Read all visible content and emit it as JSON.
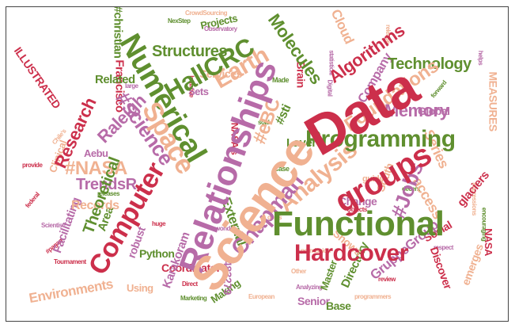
{
  "words": {
    "data": "Data",
    "science": "Science",
    "functional": "Functional",
    "relationships": "Relationships",
    "numerical": "Numerical",
    "computer": "Computer",
    "space": "Space",
    "groups": "groups",
    "programming": "Programming",
    "hardcover": "Hardcover",
    "chapman": "Chapman",
    "hallcrc": "HallCRC",
    "earth": "Earth",
    "analysis": "Analysis",
    "science_tag": "#science",
    "molecules": "Molecules",
    "algorithms": "Algorithms",
    "technology": "Technology",
    "structures": "Structures",
    "research": "Research",
    "raleigh": "Raleigh",
    "memory": "Memory",
    "foundations": "Foundations",
    "nasa_tag": "#NASA",
    "trendsr": "TrendsR",
    "theoretical": "Theoretical",
    "ebc_tag": "#eBC",
    "sti_tag": "#sti",
    "jobs_tag": "#Jobs",
    "christian_tag": "#christian",
    "projects": "Projects",
    "company": "Company",
    "cloud": "Cloud",
    "global": "Global",
    "measures": "MEASURES",
    "layer": "Layer",
    "series": "Series",
    "access": "access",
    "glaciers": "glaciers",
    "south": "South",
    "external": "External",
    "coordinator": "Coordinator",
    "records": "Records",
    "robust": "robust",
    "python": "Python",
    "karakoram": "Karakoram",
    "environments": "Environments",
    "using": "Using",
    "facilitating": "Facilitating",
    "gruppegroup": "GruppeGroup",
    "directory": "Directory",
    "discover": "Discover",
    "master": "Master",
    "senior": "Senior",
    "base": "Base",
    "social": "Social",
    "change": "Change",
    "shows": "Shows",
    "emerges": "emerges",
    "making": "Making",
    "id": "483279",
    "illustrated": "ILLUSTRATED",
    "francisco": "Francisco",
    "related": "Related",
    "sets": "Sets",
    "services": "Services",
    "brain": "Brain",
    "clinical": "Clinical",
    "aebu": "Aebu",
    "area": "Area",
    "nasa": "NASA",
    "nasas": "NASA's",
    "pagan": "#pagan",
    "scientist": "Scientist",
    "european": "European",
    "marketing": "Marketing",
    "analyzing": "Analyzing",
    "direct": "Direct",
    "programmers": "programmers",
    "observatory": "Observatory",
    "crowdsourcing": "CrowdSourcing",
    "nextstep": "NexStep",
    "initiative": "Initiative",
    "release": "release",
    "releases": "releases",
    "statistical": "statistical",
    "impressions": "impressions",
    "encouraging": "encouraging",
    "tournament": "Tournament",
    "respect": "respect",
    "guide": "guide",
    "made": "Made",
    "huge": "huge",
    "wonder": "wonder",
    "other": "Other",
    "case": "Case",
    "objects": "Objects",
    "large": "large",
    "permission": "permission",
    "decent": "decent",
    "provide": "provide",
    "helps": "helps",
    "chiles": "Chile's",
    "federal": "federal",
    "forward": "forward",
    "digital": "Digital",
    "deals": "deals",
    "review": "review",
    "sold": "sold"
  }
}
